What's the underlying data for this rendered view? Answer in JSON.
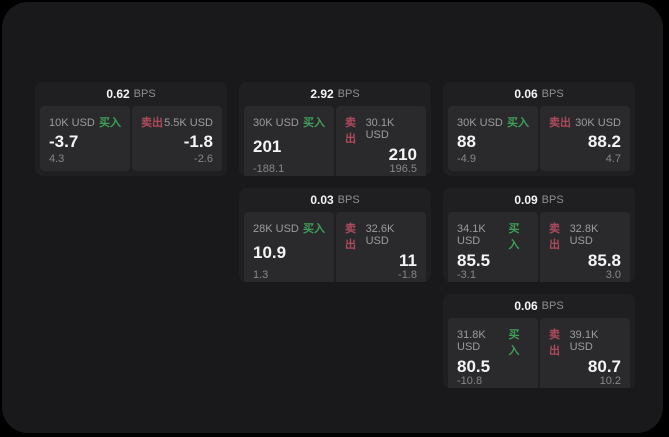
{
  "labels": {
    "bps": "BPS",
    "buy": "买入",
    "sell": "卖出"
  },
  "colors": {
    "page_bg": "#000000",
    "panel_bg": "#19191b",
    "card_bg": "#1f1f21",
    "subcard_bg": "#2a2a2c",
    "buy_green": "#3f9e58",
    "sell_red": "#ad4a5c"
  },
  "cards": [
    {
      "bps": "0.62",
      "buy": {
        "amount": "10K USD",
        "value": "-3.7",
        "delta": "4.3"
      },
      "sell": {
        "amount": "5.5K USD",
        "value": "-1.8",
        "delta": "-2.6"
      }
    },
    {
      "bps": "2.92",
      "buy": {
        "amount": "30K USD",
        "value": "201",
        "delta": "-188.1"
      },
      "sell": {
        "amount": "30.1K USD",
        "value": "210",
        "delta": "196.5"
      }
    },
    {
      "bps": "0.06",
      "buy": {
        "amount": "30K USD",
        "value": "88",
        "delta": "-4.9"
      },
      "sell": {
        "amount": "30K USD",
        "value": "88.2",
        "delta": "4.7"
      }
    },
    {
      "bps": "0.03",
      "buy": {
        "amount": "28K USD",
        "value": "10.9",
        "delta": "1.3"
      },
      "sell": {
        "amount": "32.6K USD",
        "value": "11",
        "delta": "-1.8"
      }
    },
    {
      "bps": "0.09",
      "buy": {
        "amount": "34.1K USD",
        "value": "85.5",
        "delta": "-3.1"
      },
      "sell": {
        "amount": "32.8K USD",
        "value": "85.8",
        "delta": "3.0"
      }
    },
    {
      "bps": "0.06",
      "buy": {
        "amount": "31.8K USD",
        "value": "80.5",
        "delta": "-10.8"
      },
      "sell": {
        "amount": "39.1K USD",
        "value": "80.7",
        "delta": "10.2"
      }
    }
  ]
}
